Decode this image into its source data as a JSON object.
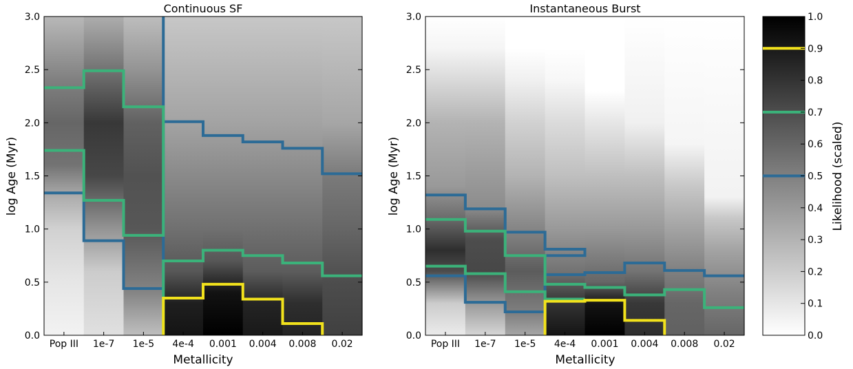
{
  "chart_data": [
    {
      "type": "heatmap",
      "title": "Continuous SF",
      "xlabel": "Metallicity",
      "ylabel": "log Age (Myr)",
      "categories": [
        "Pop III",
        "1e-7",
        "1e-5",
        "4e-4",
        "0.001",
        "0.004",
        "0.008",
        "0.02"
      ],
      "ylim": [
        0,
        3
      ],
      "yticks": [
        "0.0",
        "0.5",
        "1.0",
        "1.5",
        "2.0",
        "2.5",
        "3.0"
      ],
      "column_profiles": [
        [
          [
            0.0,
            0.05
          ],
          [
            0.5,
            0.1
          ],
          [
            1.0,
            0.18
          ],
          [
            1.3,
            0.32
          ],
          [
            1.6,
            0.55
          ],
          [
            2.0,
            0.6
          ],
          [
            2.4,
            0.5
          ],
          [
            3.0,
            0.28
          ]
        ],
        [
          [
            0.0,
            0.12
          ],
          [
            0.6,
            0.2
          ],
          [
            1.0,
            0.42
          ],
          [
            1.5,
            0.72
          ],
          [
            2.0,
            0.78
          ],
          [
            2.5,
            0.55
          ],
          [
            3.0,
            0.32
          ]
        ],
        [
          [
            0.0,
            0.25
          ],
          [
            0.4,
            0.48
          ],
          [
            1.0,
            0.66
          ],
          [
            1.5,
            0.68
          ],
          [
            2.0,
            0.62
          ],
          [
            2.5,
            0.42
          ],
          [
            3.0,
            0.26
          ]
        ],
        [
          [
            0.0,
            0.92
          ],
          [
            0.3,
            0.88
          ],
          [
            0.6,
            0.66
          ],
          [
            1.0,
            0.56
          ],
          [
            2.0,
            0.36
          ],
          [
            3.0,
            0.22
          ]
        ],
        [
          [
            0.0,
            1.0
          ],
          [
            0.4,
            0.93
          ],
          [
            0.7,
            0.66
          ],
          [
            1.0,
            0.56
          ],
          [
            2.0,
            0.36
          ],
          [
            3.0,
            0.22
          ]
        ],
        [
          [
            0.0,
            0.9
          ],
          [
            0.3,
            0.86
          ],
          [
            0.6,
            0.64
          ],
          [
            1.0,
            0.56
          ],
          [
            2.0,
            0.36
          ],
          [
            3.0,
            0.22
          ]
        ],
        [
          [
            0.0,
            0.86
          ],
          [
            0.3,
            0.82
          ],
          [
            0.6,
            0.64
          ],
          [
            1.0,
            0.56
          ],
          [
            2.0,
            0.36
          ],
          [
            3.0,
            0.22
          ]
        ],
        [
          [
            0.0,
            0.75
          ],
          [
            0.5,
            0.7
          ],
          [
            1.0,
            0.6
          ],
          [
            1.5,
            0.52
          ],
          [
            2.0,
            0.35
          ],
          [
            3.0,
            0.22
          ]
        ]
      ],
      "contours": [
        {
          "level": 0.5,
          "color": "#2c6b96",
          "paths": [
            [
              [
                0,
                1.34
              ],
              [
                1,
                1.34
              ],
              [
                1,
                0.89
              ],
              [
                2,
                0.89
              ],
              [
                2,
                0.44
              ],
              [
                3,
                0.44
              ],
              [
                3,
                3.0
              ]
            ],
            [
              [
                3,
                2.01
              ],
              [
                4,
                2.01
              ],
              [
                4,
                1.88
              ],
              [
                5,
                1.88
              ],
              [
                5,
                1.82
              ],
              [
                6,
                1.82
              ],
              [
                6,
                1.76
              ],
              [
                7,
                1.76
              ],
              [
                7,
                1.52
              ],
              [
                8,
                1.52
              ]
            ]
          ]
        },
        {
          "level": 0.7,
          "color": "#3bb27a",
          "paths": [
            [
              [
                0,
                2.33
              ],
              [
                1,
                2.33
              ],
              [
                1,
                2.49
              ],
              [
                2,
                2.49
              ],
              [
                2,
                2.15
              ],
              [
                3,
                2.15
              ],
              [
                3,
                0.94
              ],
              [
                2,
                0.94
              ],
              [
                2,
                1.27
              ],
              [
                1,
                1.27
              ],
              [
                1,
                1.74
              ],
              [
                0,
                1.74
              ]
            ],
            [
              [
                3,
                0.0
              ],
              [
                3,
                0.7
              ],
              [
                4,
                0.7
              ],
              [
                4,
                0.8
              ],
              [
                5,
                0.8
              ],
              [
                5,
                0.75
              ],
              [
                6,
                0.75
              ],
              [
                6,
                0.68
              ],
              [
                7,
                0.68
              ],
              [
                7,
                0.56
              ],
              [
                8,
                0.56
              ]
            ]
          ]
        },
        {
          "level": 0.9,
          "color": "#f2e21c",
          "paths": [
            [
              [
                3,
                0.0
              ],
              [
                3,
                0.35
              ],
              [
                4,
                0.35
              ],
              [
                4,
                0.48
              ],
              [
                5,
                0.48
              ],
              [
                5,
                0.34
              ],
              [
                6,
                0.34
              ],
              [
                6,
                0.11
              ],
              [
                7,
                0.11
              ],
              [
                7,
                0.0
              ]
            ]
          ]
        }
      ]
    },
    {
      "type": "heatmap",
      "title": "Instantaneous Burst",
      "xlabel": "Metallicity",
      "ylabel": "log Age (Myr)",
      "categories": [
        "Pop III",
        "1e-7",
        "1e-5",
        "4e-4",
        "0.001",
        "0.004",
        "0.008",
        "0.02"
      ],
      "ylim": [
        0,
        3
      ],
      "yticks": [
        "0.0",
        "0.5",
        "1.0",
        "1.5",
        "2.0",
        "2.5",
        "3.0"
      ],
      "column_profiles": [
        [
          [
            0.0,
            0.08
          ],
          [
            0.3,
            0.2
          ],
          [
            0.6,
            0.7
          ],
          [
            0.8,
            0.82
          ],
          [
            1.1,
            0.58
          ],
          [
            1.4,
            0.4
          ],
          [
            2.0,
            0.3
          ],
          [
            2.4,
            0.15
          ],
          [
            2.7,
            0.04
          ],
          [
            3.0,
            0.0
          ]
        ],
        [
          [
            0.0,
            0.16
          ],
          [
            0.3,
            0.4
          ],
          [
            0.6,
            0.72
          ],
          [
            0.9,
            0.7
          ],
          [
            1.2,
            0.45
          ],
          [
            2.0,
            0.3
          ],
          [
            2.4,
            0.15
          ],
          [
            2.7,
            0.04
          ],
          [
            3.0,
            0.0
          ]
        ],
        [
          [
            0.0,
            0.35
          ],
          [
            0.2,
            0.5
          ],
          [
            0.6,
            0.64
          ],
          [
            1.0,
            0.48
          ],
          [
            1.5,
            0.3
          ],
          [
            2.0,
            0.18
          ],
          [
            2.4,
            0.06
          ],
          [
            2.7,
            0.0
          ],
          [
            3.0,
            0.0
          ]
        ],
        [
          [
            0.0,
            0.92
          ],
          [
            0.3,
            0.8
          ],
          [
            0.6,
            0.55
          ],
          [
            1.0,
            0.4
          ],
          [
            1.5,
            0.25
          ],
          [
            2.0,
            0.14
          ],
          [
            2.4,
            0.03
          ],
          [
            2.7,
            0.0
          ],
          [
            3.0,
            0.0
          ]
        ],
        [
          [
            0.0,
            1.0
          ],
          [
            0.3,
            0.92
          ],
          [
            0.5,
            0.6
          ],
          [
            1.0,
            0.4
          ],
          [
            1.5,
            0.25
          ],
          [
            2.0,
            0.1
          ],
          [
            2.3,
            0.0
          ],
          [
            3.0,
            0.0
          ]
        ],
        [
          [
            0.0,
            0.82
          ],
          [
            0.3,
            0.78
          ],
          [
            0.6,
            0.55
          ],
          [
            1.0,
            0.4
          ],
          [
            1.5,
            0.25
          ],
          [
            2.0,
            0.06
          ],
          [
            3.0,
            0.0
          ]
        ],
        [
          [
            0.0,
            0.62
          ],
          [
            0.3,
            0.6
          ],
          [
            0.6,
            0.5
          ],
          [
            1.0,
            0.36
          ],
          [
            1.4,
            0.22
          ],
          [
            1.8,
            0.04
          ],
          [
            3.0,
            0.0
          ]
        ],
        [
          [
            0.0,
            0.6
          ],
          [
            0.4,
            0.5
          ],
          [
            0.8,
            0.36
          ],
          [
            1.1,
            0.22
          ],
          [
            1.3,
            0.05
          ],
          [
            3.0,
            0.0
          ]
        ]
      ],
      "contours": [
        {
          "level": 0.5,
          "color": "#2c6b96",
          "paths": [
            [
              [
                0,
                1.32
              ],
              [
                1,
                1.32
              ],
              [
                1,
                1.19
              ],
              [
                2,
                1.19
              ],
              [
                2,
                0.97
              ],
              [
                3,
                0.97
              ],
              [
                3,
                0.81
              ],
              [
                4,
                0.81
              ],
              [
                4,
                0.75
              ],
              [
                3,
                0.75
              ],
              [
                3,
                0.22
              ],
              [
                2,
                0.22
              ],
              [
                2,
                0.31
              ],
              [
                1,
                0.31
              ],
              [
                1,
                0.56
              ],
              [
                0,
                0.56
              ]
            ],
            [
              [
                3,
                0.57
              ],
              [
                4,
                0.57
              ],
              [
                4,
                0.59
              ],
              [
                5,
                0.59
              ],
              [
                5,
                0.68
              ],
              [
                6,
                0.68
              ],
              [
                6,
                0.61
              ],
              [
                7,
                0.61
              ],
              [
                7,
                0.56
              ],
              [
                8,
                0.56
              ]
            ]
          ]
        },
        {
          "level": 0.7,
          "color": "#3bb27a",
          "paths": [
            [
              [
                0,
                1.09
              ],
              [
                1,
                1.09
              ],
              [
                1,
                0.98
              ],
              [
                2,
                0.98
              ],
              [
                2,
                0.75
              ],
              [
                3,
                0.75
              ],
              [
                3,
                0.48
              ],
              [
                4,
                0.48
              ],
              [
                4,
                0.45
              ],
              [
                5,
                0.45
              ],
              [
                5,
                0.38
              ],
              [
                6,
                0.38
              ],
              [
                6,
                0.43
              ],
              [
                7,
                0.43
              ],
              [
                7,
                0.26
              ],
              [
                8,
                0.26
              ]
            ],
            [
              [
                0,
                0.65
              ],
              [
                1,
                0.65
              ],
              [
                1,
                0.58
              ],
              [
                2,
                0.58
              ],
              [
                2,
                0.41
              ],
              [
                3,
                0.41
              ],
              [
                3,
                0.34
              ],
              [
                4,
                0.34
              ]
            ]
          ]
        },
        {
          "level": 0.9,
          "color": "#f2e21c",
          "paths": [
            [
              [
                3,
                0.0
              ],
              [
                3,
                0.32
              ],
              [
                4,
                0.32
              ],
              [
                4,
                0.33
              ],
              [
                5,
                0.33
              ],
              [
                5,
                0.14
              ],
              [
                6,
                0.14
              ],
              [
                6,
                0.0
              ]
            ]
          ]
        }
      ]
    }
  ],
  "colorbar": {
    "label": "Likelihood (scaled)",
    "ticks": [
      "0.0",
      "0.1",
      "0.2",
      "0.3",
      "0.4",
      "0.5",
      "0.6",
      "0.7",
      "0.8",
      "0.9",
      "1.0"
    ],
    "lines": [
      {
        "level": 0.5,
        "color": "#2c6b96"
      },
      {
        "level": 0.7,
        "color": "#3bb27a"
      },
      {
        "level": 0.9,
        "color": "#f2e21c"
      }
    ]
  }
}
